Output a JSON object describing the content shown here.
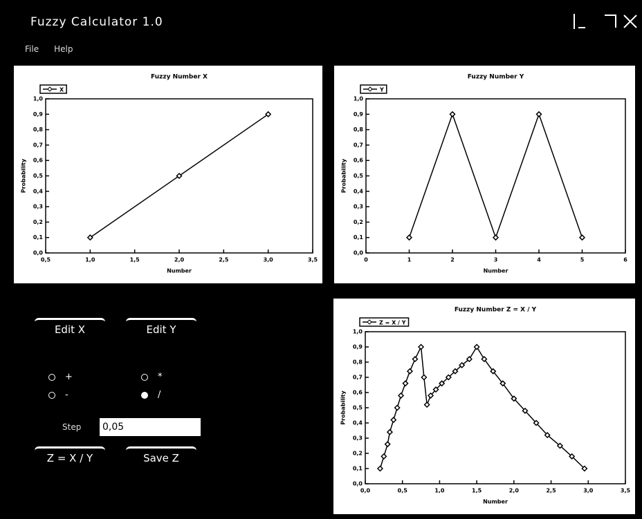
{
  "window": {
    "title": "Fuzzy Calculator 1.0"
  },
  "menu": [
    "File",
    "Help"
  ],
  "controls": {
    "buttons": [
      "Edit X",
      "Edit Y",
      "Z = X / Y",
      "Save Z"
    ],
    "operations": [
      "+",
      "-",
      "*",
      "/"
    ],
    "selected_operation": 3,
    "step_label": "Step",
    "step_value": "0,05"
  },
  "chart_data": [
    {
      "type": "line",
      "title": "Fuzzy Number X",
      "x_label": "Number",
      "y_label": "Probability",
      "x": [
        1,
        2,
        3
      ],
      "series": [
        {
          "name": "X",
          "color": "#000000",
          "values": [
            0.1,
            0.5,
            0.9
          ]
        }
      ],
      "xlim": [
        0.5,
        3.5
      ],
      "xticks": [
        {
          "value": 0.5,
          "label": "0,5"
        },
        {
          "value": 1,
          "label": "1,0"
        },
        {
          "value": 1.5,
          "label": "1,5"
        },
        {
          "value": 2,
          "label": "2,0"
        },
        {
          "value": 2.5,
          "label": "2,5"
        },
        {
          "value": 3,
          "label": "3,0"
        },
        {
          "value": 3.5,
          "label": "3,5"
        }
      ],
      "ylim": [
        0,
        1
      ],
      "yticks": [
        {
          "value": 0,
          "label": "0,0"
        },
        {
          "value": 0.1,
          "label": "0,1"
        },
        {
          "value": 0.2,
          "label": "0,2"
        },
        {
          "value": 0.3,
          "label": "0,3"
        },
        {
          "value": 0.4,
          "label": "0,4"
        },
        {
          "value": 0.5,
          "label": "0,5"
        },
        {
          "value": 0.6,
          "label": "0,6"
        },
        {
          "value": 0.7,
          "label": "0,7"
        },
        {
          "value": 0.8,
          "label": "0,8"
        },
        {
          "value": 0.9,
          "label": "0,9"
        },
        {
          "value": 1,
          "label": "1,0"
        }
      ],
      "legend": "top-left"
    },
    {
      "type": "line",
      "title": "Fuzzy Number Y",
      "x_label": "Number",
      "y_label": "Probability",
      "x": [
        1,
        2,
        3,
        4,
        5
      ],
      "series": [
        {
          "name": "Y",
          "color": "#000000",
          "values": [
            0.1,
            0.9,
            0.1,
            0.9,
            0.1
          ]
        }
      ],
      "xlim": [
        0,
        6
      ],
      "xticks": [
        0,
        1,
        2,
        3,
        4,
        5,
        6
      ],
      "ylim": [
        0,
        1
      ],
      "yticks": [
        {
          "value": 0,
          "label": "0,0"
        },
        {
          "value": 0.1,
          "label": "0,1"
        },
        {
          "value": 0.2,
          "label": "0,2"
        },
        {
          "value": 0.3,
          "label": "0,3"
        },
        {
          "value": 0.4,
          "label": "0,4"
        },
        {
          "value": 0.5,
          "label": "0,5"
        },
        {
          "value": 0.6,
          "label": "0,6"
        },
        {
          "value": 0.7,
          "label": "0,7"
        },
        {
          "value": 0.8,
          "label": "0,8"
        },
        {
          "value": 0.9,
          "label": "0,9"
        },
        {
          "value": 1,
          "label": "1,0"
        }
      ],
      "legend": "top-left"
    },
    {
      "type": "line",
      "title": "Fuzzy Number Z = X / Y",
      "x_label": "Number",
      "y_label": "Probability",
      "x": [
        0.2,
        0.25,
        0.3,
        0.33,
        0.38,
        0.43,
        0.48,
        0.54,
        0.6,
        0.67,
        0.75,
        0.79,
        0.83,
        0.88,
        0.95,
        1.03,
        1.12,
        1.21,
        1.3,
        1.4,
        1.5,
        1.6,
        1.72,
        1.85,
        2.0,
        2.15,
        2.3,
        2.45,
        2.62,
        2.78,
        2.95
      ],
      "series": [
        {
          "name": "Z = X / Y",
          "color": "#000000",
          "values": [
            0.1,
            0.18,
            0.26,
            0.34,
            0.42,
            0.5,
            0.58,
            0.66,
            0.74,
            0.82,
            0.9,
            0.7,
            0.52,
            0.58,
            0.62,
            0.66,
            0.7,
            0.74,
            0.78,
            0.82,
            0.9,
            0.82,
            0.74,
            0.66,
            0.56,
            0.48,
            0.4,
            0.32,
            0.25,
            0.18,
            0.1
          ]
        }
      ],
      "xlim": [
        0,
        3.5
      ],
      "xticks": [
        {
          "value": 0,
          "label": "0,0"
        },
        {
          "value": 0.5,
          "label": "0,5"
        },
        {
          "value": 1,
          "label": "1,0"
        },
        {
          "value": 1.5,
          "label": "1,5"
        },
        {
          "value": 2,
          "label": "2,0"
        },
        {
          "value": 2.5,
          "label": "2,5"
        },
        {
          "value": 3,
          "label": "3,0"
        },
        {
          "value": 3.5,
          "label": "3,5"
        }
      ],
      "ylim": [
        0,
        1
      ],
      "yticks": [
        {
          "value": 0,
          "label": "0,0"
        },
        {
          "value": 0.1,
          "label": "0,1"
        },
        {
          "value": 0.2,
          "label": "0,2"
        },
        {
          "value": 0.3,
          "label": "0,3"
        },
        {
          "value": 0.4,
          "label": "0,4"
        },
        {
          "value": 0.5,
          "label": "0,5"
        },
        {
          "value": 0.6,
          "label": "0,6"
        },
        {
          "value": 0.7,
          "label": "0,7"
        },
        {
          "value": 0.8,
          "label": "0,8"
        },
        {
          "value": 0.9,
          "label": "0,9"
        },
        {
          "value": 1,
          "label": "1,0"
        }
      ],
      "legend": "top-left"
    }
  ]
}
